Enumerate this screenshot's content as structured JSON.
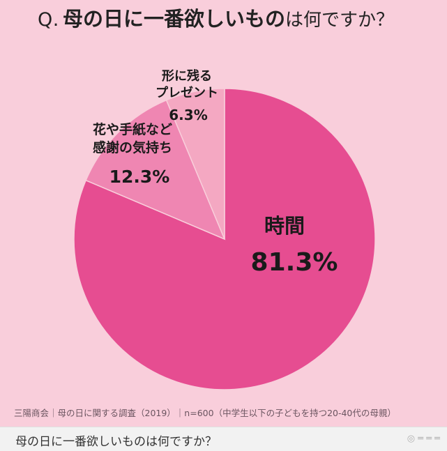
{
  "header": {
    "title_prefix": "Q.",
    "title_strong": "母の日に一番欲しいもの",
    "title_rest": "は何ですか？"
  },
  "chart_data": {
    "type": "pie",
    "slices": [
      {
        "label": "時間",
        "value": 81.3,
        "value_label": "81.3%",
        "color": "#e64d91"
      },
      {
        "label_lines": [
          "花や手紙など",
          "感謝の気持ち"
        ],
        "value": 12.3,
        "value_label": "12.3%",
        "color": "#ef86b2"
      },
      {
        "label_lines": [
          "形に残る",
          "プレゼント"
        ],
        "value": 6.3,
        "value_label": "6.3%",
        "color": "#f4a8c2"
      }
    ]
  },
  "footer": {
    "source": "三陽商会｜母の日に関する調査（2019）｜n=600（中学生以下の子どもを持つ20-40代の母親）",
    "caption": "母の日に一番欲しいものは何ですか？"
  },
  "colors": {
    "background": "#f9cedb",
    "caption_bg": "#f2f2f2"
  }
}
